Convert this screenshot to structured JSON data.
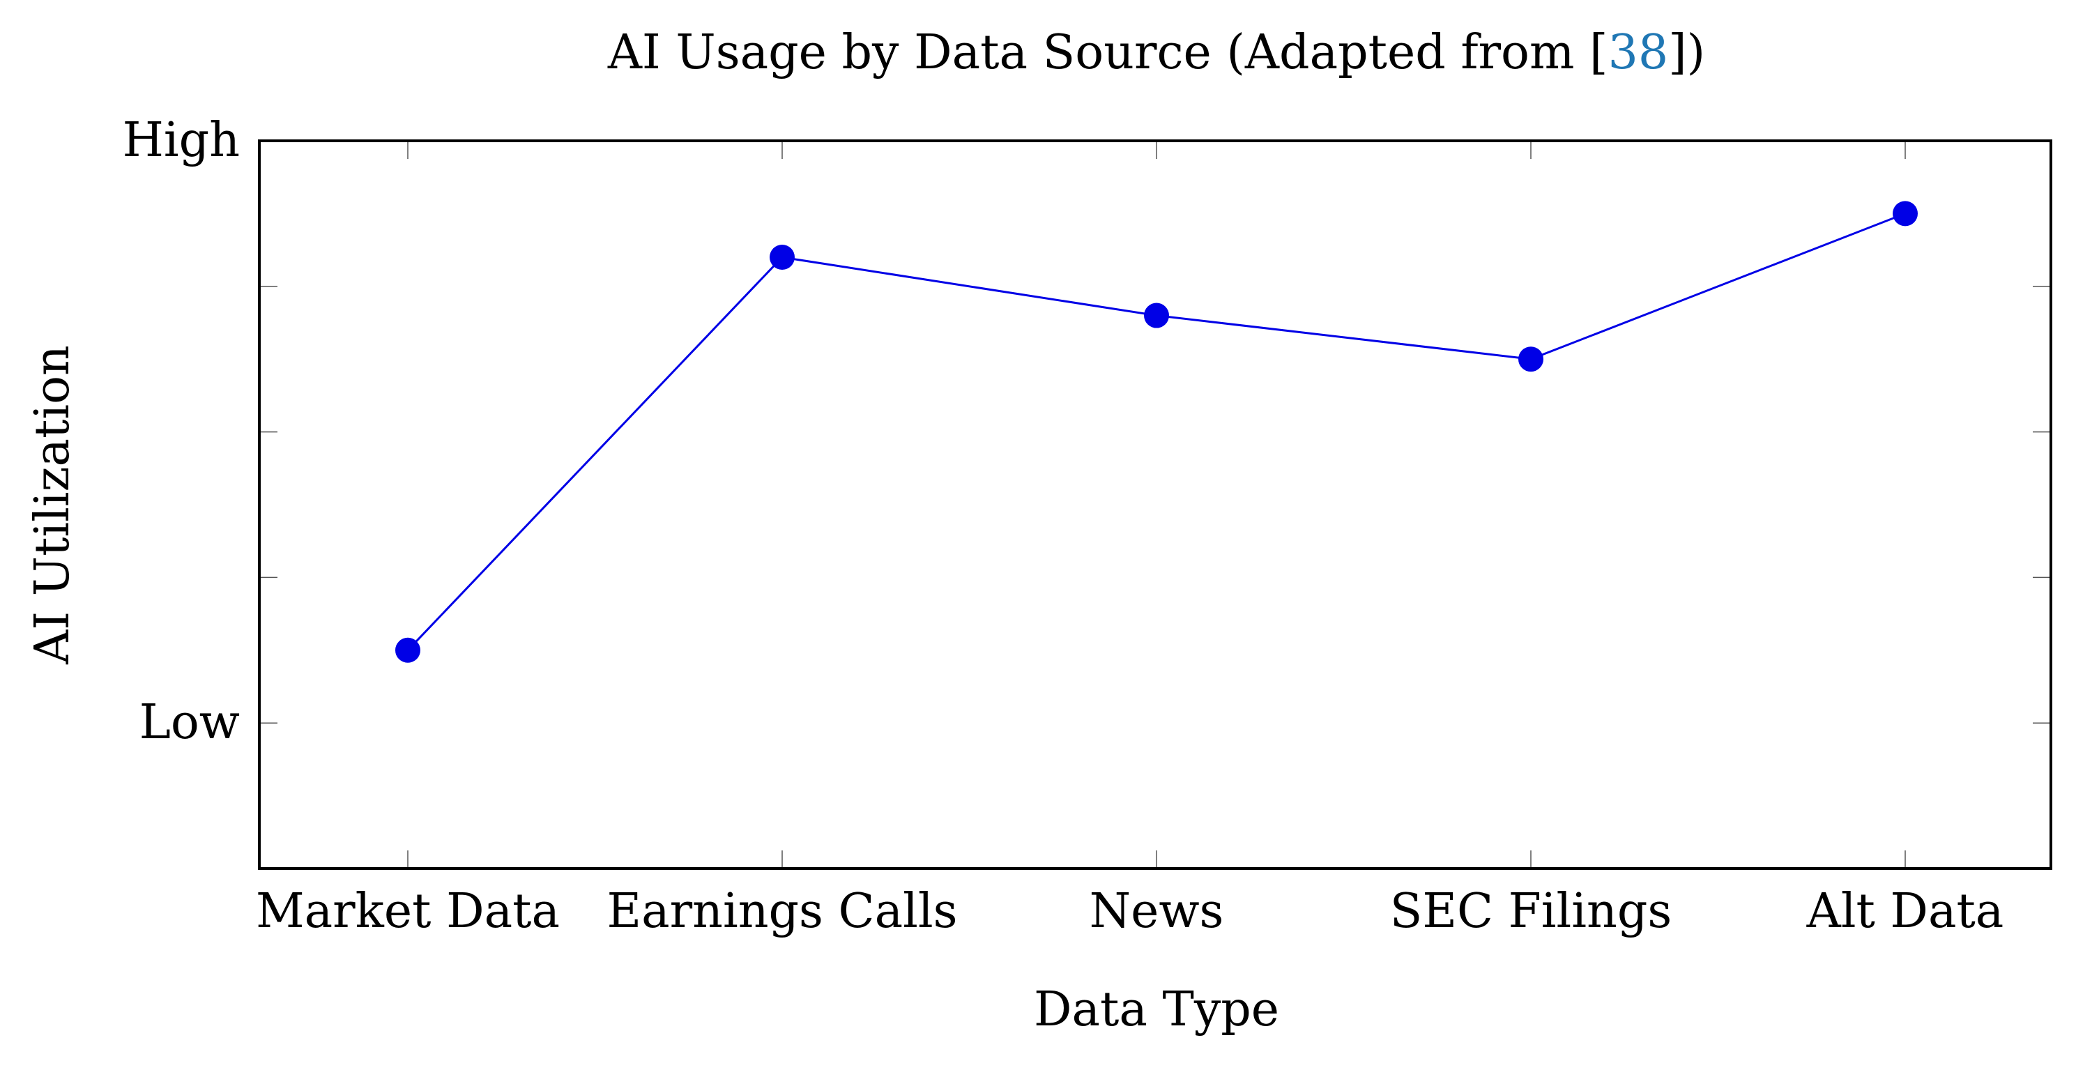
{
  "chart_data": {
    "type": "line",
    "title_prefix": "AI Usage by Data Source (Adapted from [",
    "title_ref": "38",
    "title_suffix": "])",
    "xlabel": "Data Type",
    "ylabel": "AI Utilization",
    "categories": [
      "Market Data",
      "Earnings Calls",
      "News",
      "SEC Filings",
      "Alt Data"
    ],
    "series": [
      {
        "values": [
          0.5,
          3.2,
          2.8,
          2.5,
          3.5
        ]
      }
    ],
    "ylim": [
      -1,
      4
    ],
    "ytick_values": [
      -0.0,
      1,
      2,
      3,
      4
    ],
    "ytick_labels": [
      {
        "value": 0,
        "label": "Low"
      },
      {
        "value": 4,
        "label": "High"
      }
    ],
    "minor_ytick_values": [
      -0.0,
      1,
      2,
      3
    ],
    "grid": false,
    "colors": {
      "series": "#0000e6",
      "link": "#1f77b4",
      "axis": "#000000"
    }
  }
}
